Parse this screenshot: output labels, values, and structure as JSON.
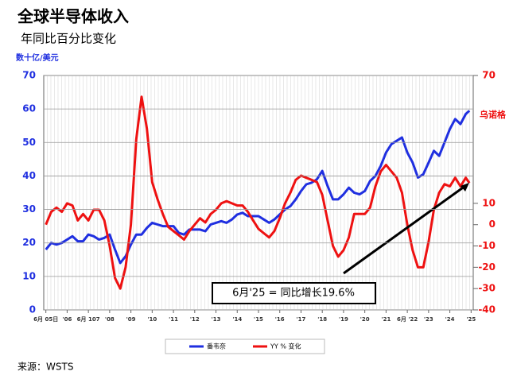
{
  "chart_data": {
    "type": "line",
    "title": "全球半导体收入",
    "subtitle": "年同比百分比变化",
    "y_label": "数十亿/美元",
    "y2_label": "乌诺格",
    "annotation": "6月'25 = 同比增长19.6%",
    "source": "来源：WSTS",
    "x": [
      2005.5,
      2005.75,
      2006,
      2006.25,
      2006.5,
      2006.75,
      2007,
      2007.25,
      2007.5,
      2007.75,
      2008,
      2008.25,
      2008.5,
      2008.75,
      2009,
      2009.25,
      2009.5,
      2009.75,
      2010,
      2010.25,
      2010.5,
      2010.75,
      2011,
      2011.25,
      2011.5,
      2011.75,
      2012,
      2012.25,
      2012.5,
      2012.75,
      2013,
      2013.25,
      2013.5,
      2013.75,
      2014,
      2014.25,
      2014.5,
      2014.75,
      2015,
      2015.25,
      2015.5,
      2015.75,
      2016,
      2016.25,
      2016.5,
      2016.75,
      2017,
      2017.25,
      2017.5,
      2017.75,
      2018,
      2018.25,
      2018.5,
      2018.75,
      2019,
      2019.25,
      2019.5,
      2019.75,
      2020,
      2020.25,
      2020.5,
      2020.75,
      2021,
      2021.25,
      2021.5,
      2021.75,
      2022,
      2022.25,
      2022.5,
      2022.75,
      2023,
      2023.25,
      2023.5,
      2023.75,
      2024,
      2024.25,
      2024.5,
      2024.75,
      2025,
      2025.25,
      2025.42
    ],
    "series": [
      {
        "name": "番韦奈",
        "color": "#1f2fe0",
        "values": [
          18,
          20,
          19.5,
          20,
          21,
          22,
          20.5,
          20.5,
          22.5,
          22,
          21,
          21.5,
          22.5,
          18,
          14,
          16,
          19.5,
          22.5,
          22.5,
          24.5,
          26,
          25.5,
          25,
          25,
          25,
          23,
          22.5,
          24,
          24,
          24,
          23.5,
          25.5,
          26,
          26.5,
          26,
          27,
          28.5,
          29,
          28,
          28,
          28,
          27,
          26,
          27,
          28.5,
          30,
          31,
          33,
          35.5,
          37.5,
          38,
          39,
          41.5,
          37,
          33,
          33,
          34.5,
          36.5,
          35,
          34.5,
          35.5,
          38.5,
          40,
          43,
          47,
          49.5,
          50.5,
          51.5,
          47,
          44,
          39.5,
          40.5,
          44,
          47.5,
          46,
          50,
          54,
          57,
          55.5,
          58.5,
          59.5
        ]
      },
      {
        "name": "YY % 变化",
        "color": "#ee1111",
        "axis": "y2",
        "values": [
          0,
          6,
          8,
          6,
          10,
          9,
          2,
          5,
          2,
          7,
          7,
          2,
          -10,
          -25,
          -30,
          -20,
          0,
          40,
          60,
          45,
          20,
          12,
          5,
          -1,
          -3,
          -5,
          -7,
          -3,
          0,
          3,
          1,
          5,
          7,
          10,
          11,
          10,
          9,
          9,
          6,
          2,
          -2,
          -4,
          -6,
          -3,
          3,
          10,
          15,
          21,
          23,
          22,
          21,
          20,
          14,
          2,
          -10,
          -15,
          -12,
          -6,
          5,
          5,
          5,
          8,
          18,
          25,
          28,
          25,
          22,
          15,
          0,
          -12,
          -20,
          -20,
          -8,
          7,
          15,
          19,
          18,
          22,
          18,
          22,
          19.6
        ]
      }
    ],
    "xlim": [
      2005.4,
      2025.6
    ],
    "xticks": [
      {
        "value": 2005.5,
        "label": "6月 05日"
      },
      {
        "value": 2006.5,
        "label": "'06"
      },
      {
        "value": 2007.5,
        "label": "6月 107"
      },
      {
        "value": 2008.5,
        "label": "'08"
      },
      {
        "value": 2009.5,
        "label": "'09"
      },
      {
        "value": 2010.5,
        "label": "'10"
      },
      {
        "value": 2011.5,
        "label": "'11"
      },
      {
        "value": 2012.5,
        "label": "'12"
      },
      {
        "value": 2013.5,
        "label": "'13"
      },
      {
        "value": 2014.5,
        "label": "'14"
      },
      {
        "value": 2015.5,
        "label": "'15"
      },
      {
        "value": 2016.5,
        "label": "'16"
      },
      {
        "value": 2017.5,
        "label": "'17"
      },
      {
        "value": 2018.5,
        "label": "'18"
      },
      {
        "value": 2019.5,
        "label": "'19"
      },
      {
        "value": 2020.5,
        "label": "'20"
      },
      {
        "value": 2021.5,
        "label": "'21"
      },
      {
        "value": 2022.5,
        "label": "6月 '22"
      },
      {
        "value": 2023.5,
        "label": "'23"
      },
      {
        "value": 2024.5,
        "label": "'24"
      },
      {
        "value": 2025.5,
        "label": "'25"
      }
    ],
    "ylim": [
      0,
      70
    ],
    "yticks": [
      0,
      10,
      20,
      30,
      40,
      50,
      60,
      70
    ],
    "y2lim": [
      -40,
      70
    ],
    "y2ticks": [
      -40,
      -30,
      -20,
      -10,
      0,
      10,
      70
    ],
    "grid": true
  }
}
